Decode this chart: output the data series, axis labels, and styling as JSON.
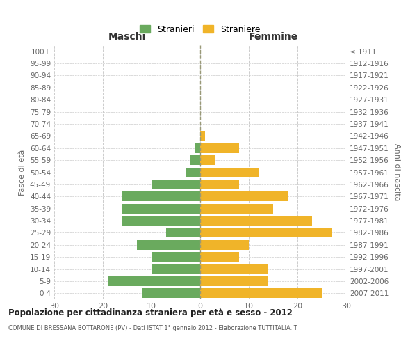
{
  "age_groups": [
    "0-4",
    "5-9",
    "10-14",
    "15-19",
    "20-24",
    "25-29",
    "30-34",
    "35-39",
    "40-44",
    "45-49",
    "50-54",
    "55-59",
    "60-64",
    "65-69",
    "70-74",
    "75-79",
    "80-84",
    "85-89",
    "90-94",
    "95-99",
    "100+"
  ],
  "birth_years": [
    "2007-2011",
    "2002-2006",
    "1997-2001",
    "1992-1996",
    "1987-1991",
    "1982-1986",
    "1977-1981",
    "1972-1976",
    "1967-1971",
    "1962-1966",
    "1957-1961",
    "1952-1956",
    "1947-1951",
    "1942-1946",
    "1937-1941",
    "1932-1936",
    "1927-1931",
    "1922-1926",
    "1917-1921",
    "1912-1916",
    "≤ 1911"
  ],
  "males": [
    12,
    19,
    10,
    10,
    13,
    7,
    16,
    16,
    16,
    10,
    3,
    2,
    1,
    0,
    0,
    0,
    0,
    0,
    0,
    0,
    0
  ],
  "females": [
    25,
    14,
    14,
    8,
    10,
    27,
    23,
    15,
    18,
    8,
    12,
    3,
    8,
    1,
    0,
    0,
    0,
    0,
    0,
    0,
    0
  ],
  "male_color": "#6aaa5e",
  "female_color": "#f0b429",
  "title": "Popolazione per cittadinanza straniera per età e sesso - 2012",
  "subtitle": "COMUNE DI BRESSANA BOTTARONE (PV) - Dati ISTAT 1° gennaio 2012 - Elaborazione TUTTITALIA.IT",
  "xlabel_left": "Maschi",
  "xlabel_right": "Femmine",
  "ylabel_left": "Fasce di età",
  "ylabel_right": "Anni di nascita",
  "legend_male": "Stranieri",
  "legend_female": "Straniere",
  "xlim": 30,
  "background_color": "#ffffff",
  "grid_color": "#cccccc",
  "bar_height": 0.8
}
